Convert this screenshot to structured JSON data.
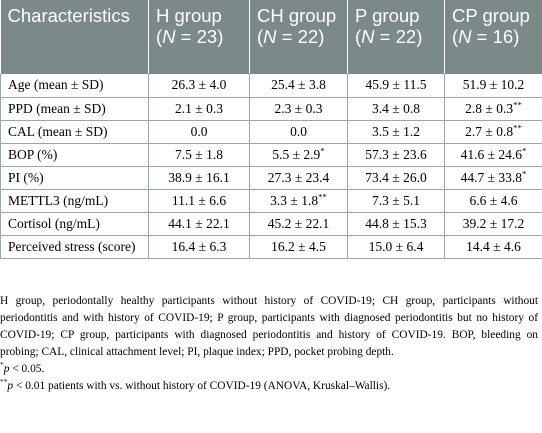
{
  "table": {
    "headers": [
      {
        "label": "Characteristics"
      },
      {
        "label": "H group",
        "n_label": "N",
        "n_value": " = 23)"
      },
      {
        "label": "CH group",
        "n_label": "N",
        "n_value": " = 22)"
      },
      {
        "label": "P group",
        "n_label": "N",
        "n_value": " = 22)"
      },
      {
        "label": "CP group",
        "n_label": "N",
        "n_value": " = 16)"
      }
    ],
    "rows": [
      {
        "label": "Age (mean ± SD)",
        "cells": [
          {
            "v": "26.3 ± 4.0",
            "sup": ""
          },
          {
            "v": "25.4 ± 3.8",
            "sup": ""
          },
          {
            "v": "45.9 ± 11.5",
            "sup": ""
          },
          {
            "v": "51.9 ± 10.2",
            "sup": ""
          }
        ]
      },
      {
        "label": "PPD (mean ± SD)",
        "cells": [
          {
            "v": "2.1 ± 0.3",
            "sup": ""
          },
          {
            "v": "2.3 ± 0.3",
            "sup": ""
          },
          {
            "v": "3.4 ± 0.8",
            "sup": ""
          },
          {
            "v": "2.8 ± 0.3",
            "sup": "**"
          }
        ]
      },
      {
        "label": "CAL (mean ± SD)",
        "cells": [
          {
            "v": "0.0",
            "sup": ""
          },
          {
            "v": "0.0",
            "sup": ""
          },
          {
            "v": "3.5 ± 1.2",
            "sup": ""
          },
          {
            "v": "2.7 ± 0.8",
            "sup": "**"
          }
        ]
      },
      {
        "label": "BOP (%)",
        "cells": [
          {
            "v": "7.5 ± 1.8",
            "sup": ""
          },
          {
            "v": "5.5 ± 2.9",
            "sup": "*"
          },
          {
            "v": "57.3 ± 23.6",
            "sup": ""
          },
          {
            "v": "41.6 ± 24.6",
            "sup": "*"
          }
        ]
      },
      {
        "label": "PI (%)",
        "cells": [
          {
            "v": "38.9 ± 16.1",
            "sup": ""
          },
          {
            "v": "27.3 ± 23.4",
            "sup": ""
          },
          {
            "v": "73.4 ± 26.0",
            "sup": ""
          },
          {
            "v": "44.7 ± 33.8",
            "sup": "*"
          }
        ]
      },
      {
        "label": "METTL3 (ng/mL)",
        "cells": [
          {
            "v": "11.1 ± 6.6",
            "sup": ""
          },
          {
            "v": "3.3 ± 1.8",
            "sup": "**"
          },
          {
            "v": "7.3 ± 5.1",
            "sup": ""
          },
          {
            "v": "6.6 ± 4.6",
            "sup": ""
          }
        ]
      },
      {
        "label": "Cortisol (ng/mL)",
        "cells": [
          {
            "v": "44.1 ± 22.1",
            "sup": ""
          },
          {
            "v": "45.2 ± 22.1",
            "sup": ""
          },
          {
            "v": "44.8 ± 15.3",
            "sup": ""
          },
          {
            "v": "39.2 ± 17.2",
            "sup": ""
          }
        ]
      },
      {
        "label": "Perceived stress (score)",
        "cells": [
          {
            "v": "16.4 ± 6.3",
            "sup": ""
          },
          {
            "v": "16.2 ± 4.5",
            "sup": ""
          },
          {
            "v": "15.0 ± 6.4",
            "sup": ""
          },
          {
            "v": "14.4 ± 4.6",
            "sup": ""
          }
        ]
      }
    ]
  },
  "footnotes": {
    "definitions": "H group, periodontally healthy participants without history of COVID-19; CH group, participants without periodontitis and with history of COVID-19; P group, participants with diagnosed periodontitis but no history of COVID-19; CP group, participants with diagnosed periodontitis and history of COVID-19. BOP, bleeding on probing; CAL, clinical attachment level; PI, plaque index; PPD, pocket probing depth.",
    "sig1_mark": "*",
    "sig1_p": "p",
    "sig1_text": " < 0.05.",
    "sig2_mark": "**",
    "sig2_p": "p",
    "sig2_text": " < 0.01 patients with vs. without history of COVID-19 (ANOVA, Kruskal–Wallis)."
  }
}
